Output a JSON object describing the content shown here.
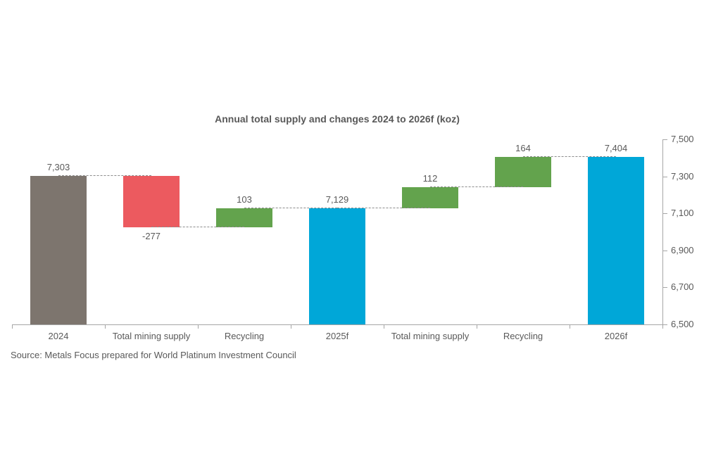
{
  "chart_data": {
    "type": "bar",
    "subtype": "waterfall",
    "title": "Annual total supply and changes 2024 to 2026f (koz)",
    "source": "Source: Metals Focus prepared for World Platinum Investment Council",
    "ylim": [
      6500,
      7500
    ],
    "grid": false,
    "legend": "none",
    "y_axis_side": "right",
    "y_ticks": [
      {
        "label": "7,500",
        "value": 7500
      },
      {
        "label": "7,300",
        "value": 7300
      },
      {
        "label": "7,100",
        "value": 7100
      },
      {
        "label": "6,900",
        "value": 6900
      },
      {
        "label": "6,700",
        "value": 6700
      },
      {
        "label": "6,500",
        "value": 6500
      }
    ],
    "categories": [
      "2024",
      "Total mining supply",
      "Recycling",
      "2025f",
      "Total mining supply",
      "Recycling",
      "2026f"
    ],
    "bars": [
      {
        "category": "2024",
        "value": 7303,
        "display": "7,303",
        "from": 6500,
        "to": 7303,
        "role": "total_actual",
        "label_position": "above"
      },
      {
        "category": "Total mining supply",
        "value": -277,
        "display": "-277",
        "from": 7303,
        "to": 7026,
        "role": "decrease",
        "label_position": "below"
      },
      {
        "category": "Recycling",
        "value": 103,
        "display": "103",
        "from": 7026,
        "to": 7129,
        "role": "increase",
        "label_position": "above"
      },
      {
        "category": "2025f",
        "value": 7129,
        "display": "7,129",
        "from": 6500,
        "to": 7129,
        "role": "total_forecast",
        "label_position": "above"
      },
      {
        "category": "Total mining supply",
        "value": 112,
        "display": "112",
        "from": 7129,
        "to": 7241,
        "role": "increase",
        "label_position": "above"
      },
      {
        "category": "Recycling",
        "value": 164,
        "display": "164",
        "from": 7241,
        "to": 7405,
        "role": "increase",
        "label_position": "above"
      },
      {
        "category": "2026f",
        "value": 7404,
        "display": "7,404",
        "from": 6500,
        "to": 7404,
        "role": "total_forecast",
        "label_position": "above"
      }
    ],
    "connector_levels": [
      7303,
      7026,
      7129,
      7129,
      7241,
      7405
    ],
    "colors": {
      "total_actual": "#7D756E",
      "decrease": "#EC5A5F",
      "increase": "#63A34D",
      "total_forecast": "#00A7D8",
      "axis": "#A6A6A6",
      "connector": "#8C8C8C",
      "text": "#595959"
    }
  }
}
